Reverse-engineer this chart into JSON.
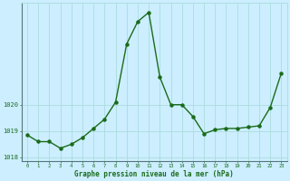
{
  "x": [
    0,
    1,
    2,
    3,
    4,
    5,
    6,
    7,
    8,
    9,
    10,
    11,
    12,
    13,
    14,
    15,
    16,
    17,
    18,
    19,
    20,
    21,
    22,
    23
  ],
  "y": [
    1018.85,
    1018.6,
    1018.6,
    1018.35,
    1018.5,
    1018.75,
    1019.1,
    1019.45,
    1020.1,
    1022.3,
    1023.15,
    1023.5,
    1021.05,
    1020.0,
    1020.0,
    1019.55,
    1018.9,
    1019.05,
    1019.1,
    1019.1,
    1019.15,
    1019.2,
    1019.9,
    1021.2
  ],
  "line_color": "#1a6b1a",
  "marker_color": "#1a6b1a",
  "bg_color": "#cceeff",
  "grid_color": "#aadddd",
  "xlabel": "Graphe pression niveau de la mer (hPa)",
  "xlabel_color": "#1a6b1a",
  "tick_color": "#1a6b1a",
  "ylim": [
    1017.85,
    1023.85
  ],
  "xlim": [
    -0.5,
    23.5
  ],
  "yticks": [
    1018,
    1019,
    1020
  ],
  "figsize": [
    3.2,
    2.0
  ],
  "dpi": 100
}
